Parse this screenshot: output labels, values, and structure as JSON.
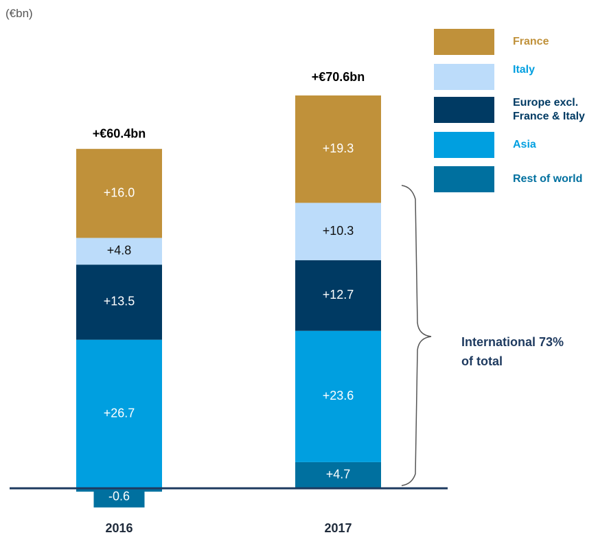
{
  "chart_data": {
    "type": "stacked_bar",
    "unit_label": "(€bn)",
    "categories": [
      "2016",
      "2017"
    ],
    "series": [
      {
        "name": "Rest of world",
        "color": "#00709f",
        "values": [
          -0.6,
          4.7
        ],
        "value_labels": [
          "-0.6",
          "+4.7"
        ]
      },
      {
        "name": "Asia",
        "color": "#009fe0",
        "values": [
          26.7,
          23.6
        ],
        "value_labels": [
          "+26.7",
          "+23.6"
        ]
      },
      {
        "name": "Europe excl. France & Italy",
        "color": "#003a63",
        "values": [
          13.5,
          12.7
        ],
        "value_labels": [
          "+13.5",
          "+12.7"
        ]
      },
      {
        "name": "Italy",
        "color": "#bcdcfa",
        "values": [
          4.8,
          10.3
        ],
        "value_labels": [
          "+4.8",
          "+10.3"
        ]
      },
      {
        "name": "France",
        "color": "#c0913a",
        "values": [
          16.0,
          19.3
        ],
        "value_labels": [
          "+16.0",
          "+19.3"
        ]
      }
    ],
    "totals": {
      "values": [
        60.4,
        70.6
      ],
      "value_labels": [
        "+€60.4bn",
        "+€70.6bn"
      ]
    },
    "annotation": "International 73% of total"
  }
}
